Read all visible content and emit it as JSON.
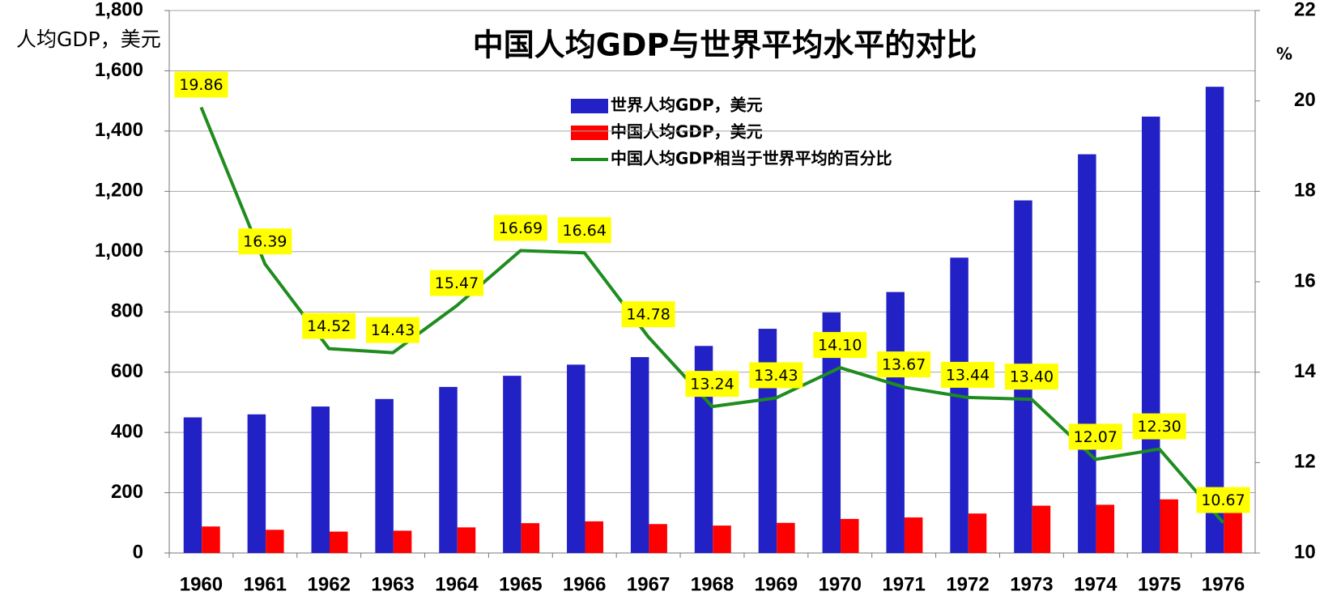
{
  "chart_data": {
    "type": "bar",
    "title": "中国人均GDP与世界平均水平的对比",
    "y_label": "人均GDP，美元",
    "y2_label": "%",
    "categories": [
      "1960",
      "1961",
      "1962",
      "1963",
      "1964",
      "1965",
      "1966",
      "1967",
      "1968",
      "1969",
      "1970",
      "1971",
      "1972",
      "1973",
      "1974",
      "1975",
      "1976"
    ],
    "series": [
      {
        "name": "世界人均GDP，美元",
        "type": "bar",
        "color": "#2121c6",
        "values": [
          450,
          460,
          486,
          511,
          551,
          588,
          625,
          650,
          687,
          744,
          798,
          866,
          980,
          1170,
          1323,
          1448,
          1547
        ]
      },
      {
        "name": "中国人均GDP，美元",
        "type": "bar",
        "color": "#ff0000",
        "values": [
          88,
          77,
          71,
          74,
          85,
          99,
          105,
          96,
          91,
          100,
          113,
          118,
          131,
          157,
          160,
          178,
          165
        ]
      },
      {
        "name": "中国人均GDP相当于世界平均的百分比",
        "type": "line",
        "axis": "y2",
        "color": "#1e8c1e",
        "values": [
          19.86,
          16.39,
          14.52,
          14.43,
          15.47,
          16.69,
          16.64,
          14.78,
          13.24,
          13.43,
          14.1,
          13.67,
          13.44,
          13.4,
          12.07,
          12.3,
          10.67
        ],
        "value_labels": [
          "19.86",
          "16.39",
          "14.52",
          "14.43",
          "15.47",
          "16.69",
          "16.64",
          "14.78",
          "13.24",
          "13.43",
          "14.10",
          "13.67",
          "13.44",
          "13.40",
          "12.07",
          "12.30",
          "10.67"
        ]
      }
    ],
    "ylim": [
      0,
      1800
    ],
    "yticks": [
      0,
      200,
      400,
      600,
      800,
      {
        "value": 1000,
        "label": "1,000"
      },
      {
        "value": 1200,
        "label": "1,200"
      },
      {
        "value": 1400,
        "label": "1,400"
      },
      {
        "value": 1600,
        "label": "1,600"
      },
      {
        "value": 1800,
        "label": "1,800"
      }
    ],
    "y2lim": [
      10,
      22
    ],
    "y2ticks": [
      10,
      12,
      14,
      16,
      18,
      20,
      22
    ],
    "grid": true,
    "label_color": "#ffff00"
  }
}
